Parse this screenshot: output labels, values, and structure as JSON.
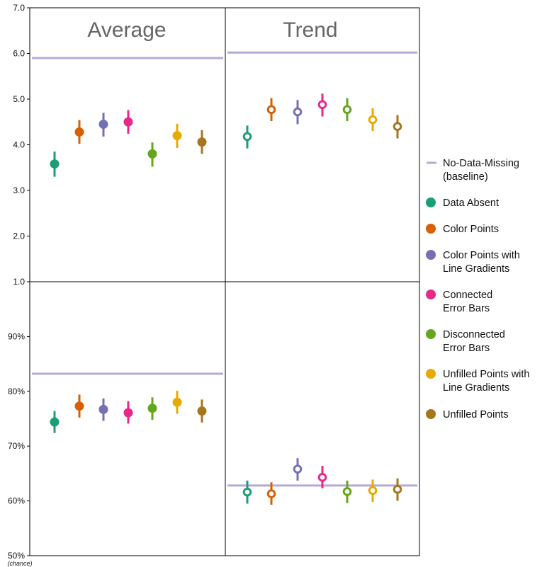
{
  "chart_data": {
    "type": "scatter",
    "panel_titles": [
      "Average",
      "Trend"
    ],
    "colors": {
      "baseline": "#b8a8d8",
      "Data Absent": "#1b9e77",
      "Color Points": "#d95f02",
      "Color Points with Line Gradients": "#7570b3",
      "Connected Error Bars": "#e7298a",
      "Disconnected Error Bars": "#66a61e",
      "Unfilled Points with Line Gradients": "#e6ab02",
      "Unfilled Points": "#a6761d"
    },
    "legend": [
      {
        "key": "baseline",
        "marker": "line",
        "lines": [
          "No-Data-Missing",
          "(baseline)"
        ]
      },
      {
        "key": "Data Absent",
        "marker": "dot",
        "lines": [
          "Data Absent"
        ]
      },
      {
        "key": "Color Points",
        "marker": "dot",
        "lines": [
          "Color Points"
        ]
      },
      {
        "key": "Color Points with Line Gradients",
        "marker": "dot",
        "lines": [
          "Color Points with",
          "Line Gradients"
        ]
      },
      {
        "key": "Connected Error Bars",
        "marker": "dot",
        "lines": [
          "Connected",
          "Error Bars"
        ]
      },
      {
        "key": "Disconnected Error Bars",
        "marker": "dot",
        "lines": [
          "Disconnected",
          "Error Bars"
        ]
      },
      {
        "key": "Unfilled Points with Line Gradients",
        "marker": "dot",
        "lines": [
          "Unfilled Points with",
          "Line Gradients"
        ]
      },
      {
        "key": "Unfilled Points",
        "marker": "dot",
        "lines": [
          "Unfilled Points"
        ]
      }
    ],
    "conditions": [
      "Data Absent",
      "Color Points",
      "Color Points with Line Gradients",
      "Connected Error Bars",
      "Disconnected Error Bars",
      "Unfilled Points with Line Gradients",
      "Unfilled Points"
    ],
    "rows": [
      {
        "ylim": [
          1.0,
          7.0
        ],
        "ticks": [
          "1.0",
          "2.0",
          "3.0",
          "4.0",
          "5.0",
          "6.0",
          "7.0"
        ],
        "tick_values": [
          1,
          2,
          3,
          4,
          5,
          6,
          7
        ],
        "panels": [
          {
            "baseline": 5.9,
            "filled": true,
            "points": [
              {
                "value": 3.58,
                "low": 3.3,
                "high": 3.85
              },
              {
                "value": 4.28,
                "low": 4.02,
                "high": 4.54
              },
              {
                "value": 4.45,
                "low": 4.18,
                "high": 4.7
              },
              {
                "value": 4.5,
                "low": 4.24,
                "high": 4.76
              },
              {
                "value": 3.8,
                "low": 3.52,
                "high": 4.05
              },
              {
                "value": 4.2,
                "low": 3.93,
                "high": 4.46
              },
              {
                "value": 4.06,
                "low": 3.8,
                "high": 4.32
              }
            ]
          },
          {
            "baseline": 6.02,
            "filled": false,
            "points": [
              {
                "value": 4.18,
                "low": 3.92,
                "high": 4.42
              },
              {
                "value": 4.77,
                "low": 4.52,
                "high": 5.02
              },
              {
                "value": 4.72,
                "low": 4.45,
                "high": 4.98
              },
              {
                "value": 4.88,
                "low": 4.62,
                "high": 5.12
              },
              {
                "value": 4.77,
                "low": 4.52,
                "high": 5.02
              },
              {
                "value": 4.55,
                "low": 4.3,
                "high": 4.8
              },
              {
                "value": 4.4,
                "low": 4.14,
                "high": 4.65
              }
            ]
          }
        ]
      },
      {
        "ylim": [
          50,
          100
        ],
        "ticks": [
          "50%",
          "60%",
          "70%",
          "80%",
          "90%"
        ],
        "tick_values": [
          50,
          60,
          70,
          80,
          90
        ],
        "chance_label": "(chance)",
        "panels": [
          {
            "baseline": 83.2,
            "filled": true,
            "points": [
              {
                "value": 74.4,
                "low": 72.4,
                "high": 76.4
              },
              {
                "value": 77.3,
                "low": 75.2,
                "high": 79.4
              },
              {
                "value": 76.7,
                "low": 74.6,
                "high": 78.7
              },
              {
                "value": 76.1,
                "low": 74.1,
                "high": 78.2
              },
              {
                "value": 76.9,
                "low": 74.8,
                "high": 78.9
              },
              {
                "value": 78.0,
                "low": 75.9,
                "high": 80.1
              },
              {
                "value": 76.4,
                "low": 74.3,
                "high": 78.5
              }
            ]
          },
          {
            "baseline": 62.8,
            "filled": false,
            "points": [
              {
                "value": 61.6,
                "low": 59.5,
                "high": 63.7
              },
              {
                "value": 61.3,
                "low": 59.3,
                "high": 63.4
              },
              {
                "value": 65.8,
                "low": 63.7,
                "high": 67.8
              },
              {
                "value": 64.3,
                "low": 62.3,
                "high": 66.4
              },
              {
                "value": 61.7,
                "low": 59.6,
                "high": 63.7
              },
              {
                "value": 61.9,
                "low": 59.8,
                "high": 63.9
              },
              {
                "value": 62.1,
                "low": 60.0,
                "high": 64.1
              }
            ]
          }
        ]
      }
    ]
  }
}
